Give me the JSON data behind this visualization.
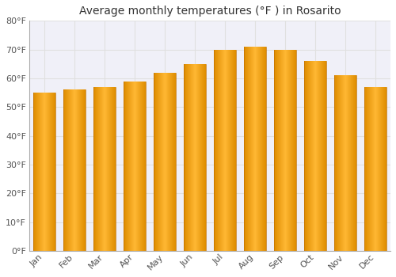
{
  "title": "Average monthly temperatures (°F ) in Rosarito",
  "months": [
    "Jan",
    "Feb",
    "Mar",
    "Apr",
    "May",
    "Jun",
    "Jul",
    "Aug",
    "Sep",
    "Oct",
    "Nov",
    "Dec"
  ],
  "values": [
    55,
    56,
    57,
    59,
    62,
    65,
    70,
    71,
    70,
    66,
    61,
    57
  ],
  "bar_color_center": "#FFB833",
  "bar_color_edge": "#F08C00",
  "background_color": "#ffffff",
  "plot_bg_color": "#f0f0f8",
  "ylim": [
    0,
    80
  ],
  "yticks": [
    0,
    10,
    20,
    30,
    40,
    50,
    60,
    70,
    80
  ],
  "ytick_labels": [
    "0°F",
    "10°F",
    "20°F",
    "30°F",
    "40°F",
    "50°F",
    "60°F",
    "70°F",
    "80°F"
  ],
  "title_fontsize": 10,
  "tick_fontsize": 8,
  "grid_color": "#e0e0e0",
  "font_family": "DejaVu Sans"
}
